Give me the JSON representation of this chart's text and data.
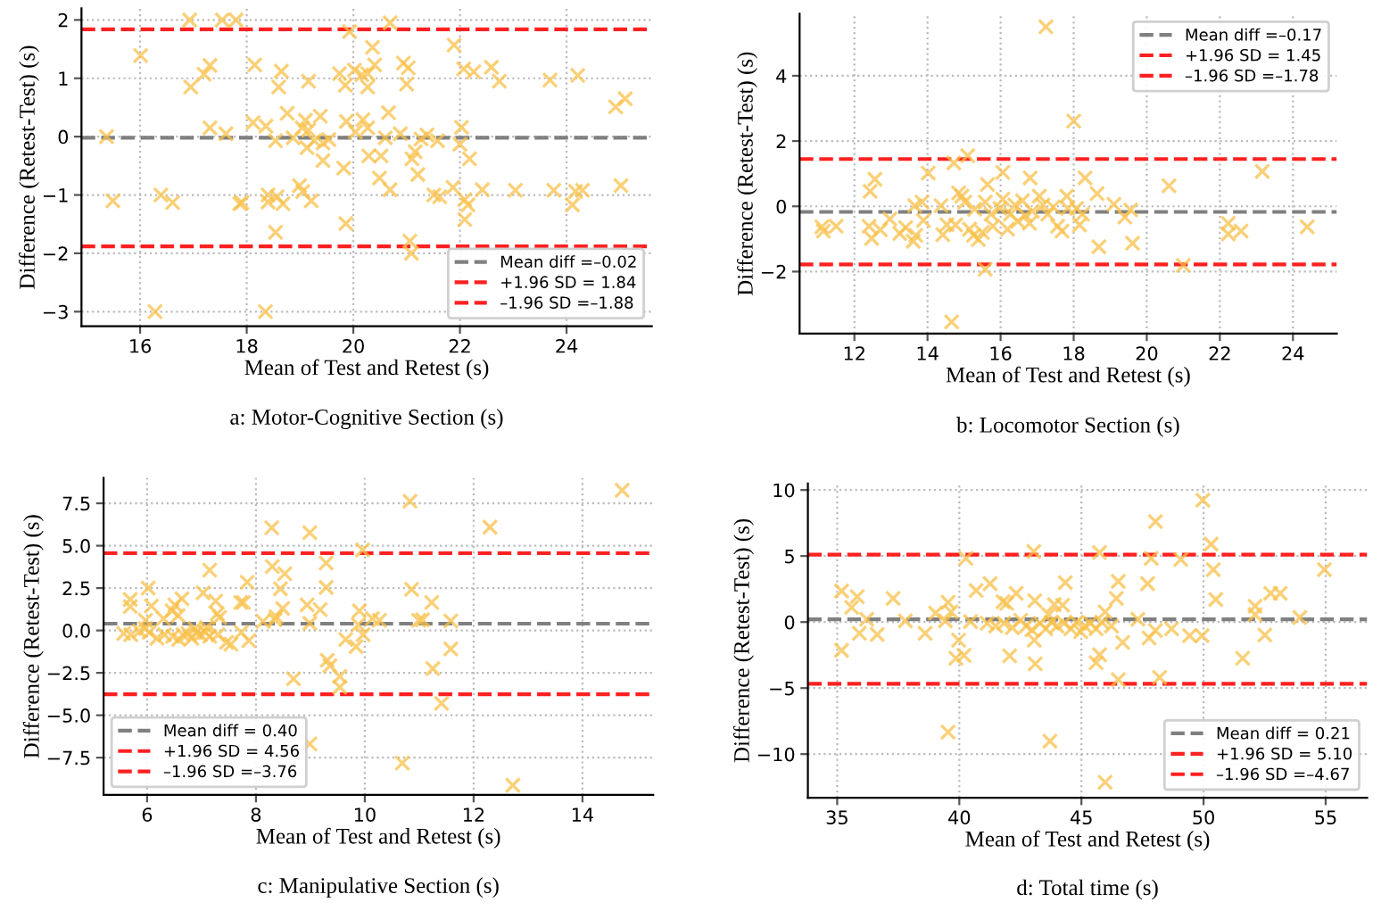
{
  "chart_data": [
    {
      "type": "scatter",
      "xlabel": "Mean of Test and Retest (s)",
      "ylabel": "Difference (Retest-Test) (s)",
      "annotations": [
        "a: Motor-Cognitive Section (s)"
      ],
      "xlim": [
        14.9,
        25.6
      ],
      "ylim": [
        -3.25,
        2.2
      ],
      "xticks": [
        16,
        18,
        20,
        22,
        24
      ],
      "yticks": [
        {
          "value": -3,
          "label": "−3"
        },
        {
          "value": -2,
          "label": "−2"
        },
        {
          "value": -1,
          "label": "−1"
        },
        0,
        1,
        2
      ],
      "grid": true,
      "legend": "bottom right",
      "marker": "cross",
      "series": [
        {
          "color": "#f8c04a",
          "x": [
            16.93,
            17.54,
            17.8,
            20.69,
            19.93,
            16.01,
            16.95,
            17.2,
            17.31,
            18.15,
            18.65,
            18.6,
            19.16,
            19.74,
            19.85,
            20.02,
            20.16,
            20.27,
            20.36,
            20.4,
            20.27,
            20.94,
            21.0,
            21.03,
            21.89,
            22.07,
            22.26,
            22.59,
            22.74,
            23.69,
            24.21,
            24.92,
            25.1,
            15.37,
            17.31,
            17.61,
            18.12,
            18.36,
            18.76,
            19.04,
            19.1,
            19.16,
            19.38,
            18.87,
            18.54,
            19.27,
            19.43,
            19.54,
            19.13,
            19.43,
            19.87,
            20.04,
            20.18,
            20.27,
            20.29,
            20.52,
            20.66,
            20.49,
            20.6,
            20.69,
            20.88,
            21.1,
            21.16,
            21.21,
            21.27,
            21.38,
            21.58,
            22.03,
            22.0,
            22.18,
            19.82,
            15.49,
            16.39,
            16.61,
            17.87,
            17.91,
            18.4,
            18.4,
            18.57,
            18.68,
            18.54,
            18.99,
            19.05,
            19.21,
            19.86,
            21.06,
            21.09,
            21.51,
            21.62,
            21.87,
            22.09,
            22.15,
            22.09,
            22.42,
            23.04,
            23.76,
            24.11,
            24.17,
            24.3,
            25.02,
            16.28,
            18.35
          ],
          "values": [
            2.0,
            2.0,
            2.0,
            1.95,
            1.8,
            1.39,
            0.85,
            1.07,
            1.22,
            1.23,
            1.12,
            0.85,
            0.95,
            1.08,
            0.88,
            1.14,
            1.06,
            1.08,
            1.53,
            1.23,
            0.85,
            1.26,
            0.9,
            1.18,
            1.57,
            1.16,
            1.11,
            1.19,
            0.95,
            0.97,
            1.05,
            0.51,
            0.65,
            0.0,
            0.15,
            0.05,
            0.24,
            0.18,
            0.4,
            0.15,
            0.28,
            0.11,
            0.35,
            -0.02,
            -0.07,
            -0.07,
            -0.11,
            -0.05,
            -0.19,
            -0.41,
            0.26,
            0.08,
            0.29,
            0.15,
            -0.33,
            -0.33,
            0.41,
            -0.71,
            -0.02,
            -0.91,
            0.05,
            -0.38,
            -0.26,
            -0.65,
            -0.04,
            0.03,
            -0.07,
            0.16,
            -0.13,
            -0.38,
            -0.54,
            -1.1,
            -1.0,
            -1.13,
            -1.15,
            -1.13,
            -1.0,
            -1.12,
            -1.03,
            -1.15,
            -1.64,
            -0.84,
            -0.94,
            -1.1,
            -1.49,
            -1.79,
            -2.0,
            -1.0,
            -1.03,
            -0.87,
            -1.08,
            -1.17,
            -1.42,
            -0.91,
            -0.92,
            -0.92,
            -1.17,
            -0.94,
            -0.92,
            -0.84,
            -3.0,
            -3.0
          ]
        }
      ],
      "ref_lines": [
        {
          "axis": "y",
          "value": -0.02,
          "label": "Mean diff =–0.02",
          "color": "#808080",
          "line_style": "dashed"
        },
        {
          "axis": "y",
          "value": 1.84,
          "label": "+1.96 SD = 1.84",
          "color": "#ff2020",
          "line_style": "dashed"
        },
        {
          "axis": "y",
          "value": -1.88,
          "label": "–1.96 SD =–1.88",
          "color": "#ff2020",
          "line_style": "dashed"
        }
      ]
    },
    {
      "type": "scatter",
      "xlabel": "Mean of Test and Retest (s)",
      "ylabel": "Difference (Retest-Test) (s)",
      "annotations": [
        "b: Locomotor Section (s)"
      ],
      "xlim": [
        10.5,
        25.2
      ],
      "ylim": [
        -3.9,
        5.9
      ],
      "xticks": [
        12,
        14,
        16,
        18,
        20,
        22,
        24
      ],
      "yticks": [
        {
          "value": -2,
          "label": "−2"
        },
        0,
        2,
        4
      ],
      "grid": true,
      "legend": "top right",
      "marker": "cross",
      "series": [
        {
          "color": "#f8c04a",
          "x": [
            17.24,
            18.0,
            14.66,
            15.1,
            15.58,
            21.0,
            23.16,
            24.39,
            20.61,
            22.23,
            22.23,
            22.58,
            18.69,
            19.61,
            19.56,
            19.4,
            19.1,
            18.31,
            18.64,
            17.81,
            16.81,
            16.06,
            15.64,
            14.72,
            14.02,
            12.56,
            12.43,
            11.11,
            11.15,
            11.5,
            12.4,
            12.47,
            12.71,
            12.97,
            13.24,
            13.4,
            13.61,
            13.68,
            13.65,
            13.85,
            13.89,
            14.37,
            14.42,
            14.53,
            14.77,
            14.85,
            14.94,
            15.02,
            15.15,
            15.26,
            15.29,
            15.39,
            15.5,
            15.58,
            15.74,
            15.79,
            15.98,
            16.06,
            16.19,
            16.27,
            16.39,
            16.47,
            16.6,
            16.68,
            16.79,
            16.87,
            17.06,
            17.16,
            17.29,
            17.44,
            17.56,
            17.68,
            17.84,
            18.08,
            18.16,
            18.24
          ],
          "values": [
            5.5,
            2.61,
            -3.54,
            1.55,
            -1.93,
            -1.81,
            1.07,
            -0.63,
            0.63,
            -0.52,
            -0.85,
            -0.76,
            -1.24,
            -1.13,
            -0.11,
            -0.33,
            0.06,
            0.87,
            0.39,
            0.31,
            0.87,
            1.04,
            0.67,
            1.33,
            1.02,
            0.83,
            0.46,
            -0.63,
            -0.76,
            -0.61,
            -0.61,
            -0.98,
            -0.72,
            -0.39,
            -0.83,
            -0.65,
            -1.07,
            -0.89,
            0.02,
            0.13,
            -0.43,
            0.02,
            -0.87,
            -0.56,
            -0.57,
            0.41,
            0.31,
            0.13,
            -0.7,
            -0.89,
            -0.09,
            -1.02,
            -0.8,
            0.13,
            -0.24,
            -0.61,
            -0.06,
            0.22,
            -0.7,
            -0.24,
            0.04,
            -0.46,
            0.17,
            -0.28,
            -0.52,
            -0.15,
            0.31,
            0.04,
            -0.24,
            -0.02,
            -0.61,
            -0.76,
            -0.06,
            -0.06,
            -0.57,
            -0.24
          ]
        }
      ],
      "ref_lines": [
        {
          "axis": "y",
          "value": -0.17,
          "label": "Mean diff =–0.17",
          "color": "#808080",
          "line_style": "dashed"
        },
        {
          "axis": "y",
          "value": 1.45,
          "label": "+1.96 SD = 1.45",
          "color": "#ff2020",
          "line_style": "dashed"
        },
        {
          "axis": "y",
          "value": -1.78,
          "label": "–1.96 SD =–1.78",
          "color": "#ff2020",
          "line_style": "dashed"
        }
      ]
    },
    {
      "type": "scatter",
      "xlabel": "Mean of Test and Retest (s)",
      "ylabel": "Difference (Retest-Test) (s)",
      "annotations": [
        "c: Manipulative Section (s)"
      ],
      "xlim": [
        5.2,
        15.3
      ],
      "ylim": [
        -9.7,
        9.0
      ],
      "xticks": [
        6,
        8,
        10,
        12,
        14
      ],
      "yticks": [
        {
          "value": -7.5,
          "label": "−7.5"
        },
        {
          "value": -5,
          "label": "−5.0"
        },
        {
          "value": -2.5,
          "label": "−2.5"
        },
        {
          "value": 0,
          "label": "0.0"
        },
        2.5,
        {
          "value": 5,
          "label": "5.0"
        },
        7.5
      ],
      "grid": true,
      "legend": "bottom left",
      "marker": "cross",
      "series": [
        {
          "color": "#f8c04a",
          "x": [
            14.73,
            10.83,
            12.3,
            8.29,
            8.99,
            9.96,
            7.15,
            8.3,
            9.29,
            8.53,
            7.84,
            9.29,
            8.45,
            10.86,
            6.02,
            7.03,
            6.64,
            5.69,
            5.69,
            6.08,
            6.51,
            6.46,
            6.57,
            7.29,
            7.33,
            7.26,
            7.72,
            7.77,
            8.49,
            8.94,
            9.18,
            9.9,
            11.23,
            6.3,
            5.97,
            8.13,
            8.35,
            8.37,
            8.99,
            9.88,
            10.14,
            10.27,
            10.99,
            11.06,
            11.58,
            9.97,
            9.65,
            9.84,
            11.58,
            8.69,
            9.31,
            9.36,
            9.54,
            9.54,
            11.25,
            11.41,
            8.99,
            10.69,
            12.72,
            5.57,
            5.7,
            5.86,
            6.04,
            6.18,
            6.32,
            6.47,
            6.58,
            6.66,
            6.75,
            6.82,
            6.9,
            6.98,
            7.07,
            7.15,
            7.3,
            7.46,
            7.54,
            7.73,
            7.87,
            6.88,
            7.09,
            5.97
          ],
          "values": [
            8.27,
            7.62,
            6.09,
            6.06,
            5.77,
            4.75,
            3.56,
            3.77,
            3.98,
            3.35,
            2.85,
            2.54,
            2.46,
            2.43,
            2.5,
            2.22,
            1.87,
            1.83,
            1.41,
            1.44,
            1.51,
            1.16,
            0.88,
            0.99,
            0.77,
            1.73,
            1.65,
            1.65,
            1.3,
            1.51,
            1.23,
            1.16,
            1.65,
            0.7,
            0.6,
            0.53,
            0.63,
            0.81,
            0.42,
            0.35,
            0.7,
            0.6,
            0.6,
            0.63,
            0.56,
            -0.25,
            -0.53,
            -0.95,
            -1.09,
            -2.85,
            -1.76,
            -2.08,
            -2.71,
            -3.34,
            -2.25,
            -4.3,
            -6.69,
            -7.82,
            -9.13,
            -0.18,
            -0.25,
            -0.04,
            -0.11,
            -0.46,
            -0.25,
            -0.35,
            -0.53,
            -0.25,
            -0.18,
            -0.46,
            -0.11,
            -0.25,
            -0.11,
            -0.35,
            -0.25,
            -0.7,
            -0.81,
            -0.11,
            -0.6,
            0.11,
            0.18,
            0.11
          ]
        }
      ],
      "ref_lines": [
        {
          "axis": "y",
          "value": 0.4,
          "label": "Mean diff = 0.40",
          "color": "#808080",
          "line_style": "dashed"
        },
        {
          "axis": "y",
          "value": 4.56,
          "label": "+1.96 SD = 4.56",
          "color": "#ff2020",
          "line_style": "dashed"
        },
        {
          "axis": "y",
          "value": -3.76,
          "label": "–1.96 SD =–3.76",
          "color": "#ff2020",
          "line_style": "dashed"
        }
      ]
    },
    {
      "type": "scatter",
      "xlabel": "Mean of Test and Retest (s)",
      "ylabel": "Difference (Retest-Test) (s)",
      "annotations": [
        "d: Total time (s)"
      ],
      "xlim": [
        33.8,
        56.7
      ],
      "ylim": [
        -13.3,
        10.5
      ],
      "xticks": [
        35,
        40,
        45,
        50,
        55
      ],
      "yticks": [
        {
          "value": -10,
          "label": "−10"
        },
        {
          "value": -5,
          "label": "−5"
        },
        0,
        5,
        10
      ],
      "grid": true,
      "legend": "bottom right",
      "marker": "cross",
      "series": [
        {
          "color": "#f8c04a",
          "x": [
            49.97,
            48.03,
            50.31,
            43.05,
            45.74,
            40.27,
            47.86,
            49.07,
            50.4,
            54.95,
            41.26,
            44.34,
            46.51,
            47.71,
            35.18,
            40.69,
            42.33,
            52.75,
            53.14,
            35.82,
            37.29,
            46.43,
            50.5,
            41.79,
            41.94,
            43.09,
            39.54,
            43.89,
            44.23,
            35.59,
            52.11,
            45.97,
            39.03,
            39.66,
            36.21,
            37.79,
            52.11,
            53.94,
            39.43,
            40.46,
            47.31,
            35.91,
            36.64,
            38.6,
            39.97,
            35.18,
            39.86,
            40.19,
            42.06,
            43.07,
            43.11,
            45.74,
            45.6,
            46.69,
            46.51,
            48.2,
            47.77,
            48.69,
            49.43,
            49.94,
            52.51,
            51.6,
            48.03,
            39.54,
            43.71,
            45.97,
            41.14,
            41.49,
            41.83,
            42.17,
            42.51,
            42.74,
            42.97,
            43.31,
            43.54,
            43.77,
            44.0,
            44.29,
            44.57,
            44.8,
            44.97,
            45.14,
            45.37,
            45.6,
            45.83,
            46.23,
            43.66
          ],
          "values": [
            9.23,
            7.61,
            5.9,
            5.34,
            5.26,
            4.83,
            4.83,
            4.74,
            3.97,
            3.97,
            2.91,
            2.99,
            3.08,
            2.91,
            2.35,
            2.39,
            2.18,
            2.18,
            2.18,
            1.92,
            1.79,
            1.79,
            1.71,
            1.54,
            1.41,
            1.62,
            1.5,
            1.32,
            1.28,
            1.11,
            1.2,
            0.77,
            0.68,
            0.77,
            0.21,
            0.09,
            0.56,
            0.34,
            0.09,
            0.04,
            0.21,
            -0.85,
            -0.94,
            -0.85,
            -1.37,
            -2.14,
            -2.74,
            -2.52,
            -2.56,
            -1.37,
            -3.16,
            -2.48,
            -3.08,
            -1.54,
            -4.36,
            -4.19,
            -1.2,
            -0.51,
            -1.03,
            -1.03,
            -0.98,
            -2.74,
            -0.64,
            -8.33,
            -9.02,
            -12.13,
            -0.09,
            -0.3,
            -0.09,
            -0.43,
            0.13,
            -0.3,
            -0.6,
            -0.09,
            -0.51,
            0.0,
            -0.3,
            -0.09,
            -0.51,
            0.0,
            -0.73,
            -0.3,
            -0.09,
            -0.51,
            0.0,
            -0.3,
            0.56
          ]
        }
      ],
      "ref_lines": [
        {
          "axis": "y",
          "value": 0.21,
          "label": "Mean diff = 0.21",
          "color": "#808080",
          "line_style": "dashed"
        },
        {
          "axis": "y",
          "value": 5.1,
          "label": "+1.96 SD = 5.10",
          "color": "#ff2020",
          "line_style": "dashed"
        },
        {
          "axis": "y",
          "value": -4.67,
          "label": "–1.96 SD =–4.67",
          "color": "#ff2020",
          "line_style": "dashed"
        }
      ]
    }
  ]
}
